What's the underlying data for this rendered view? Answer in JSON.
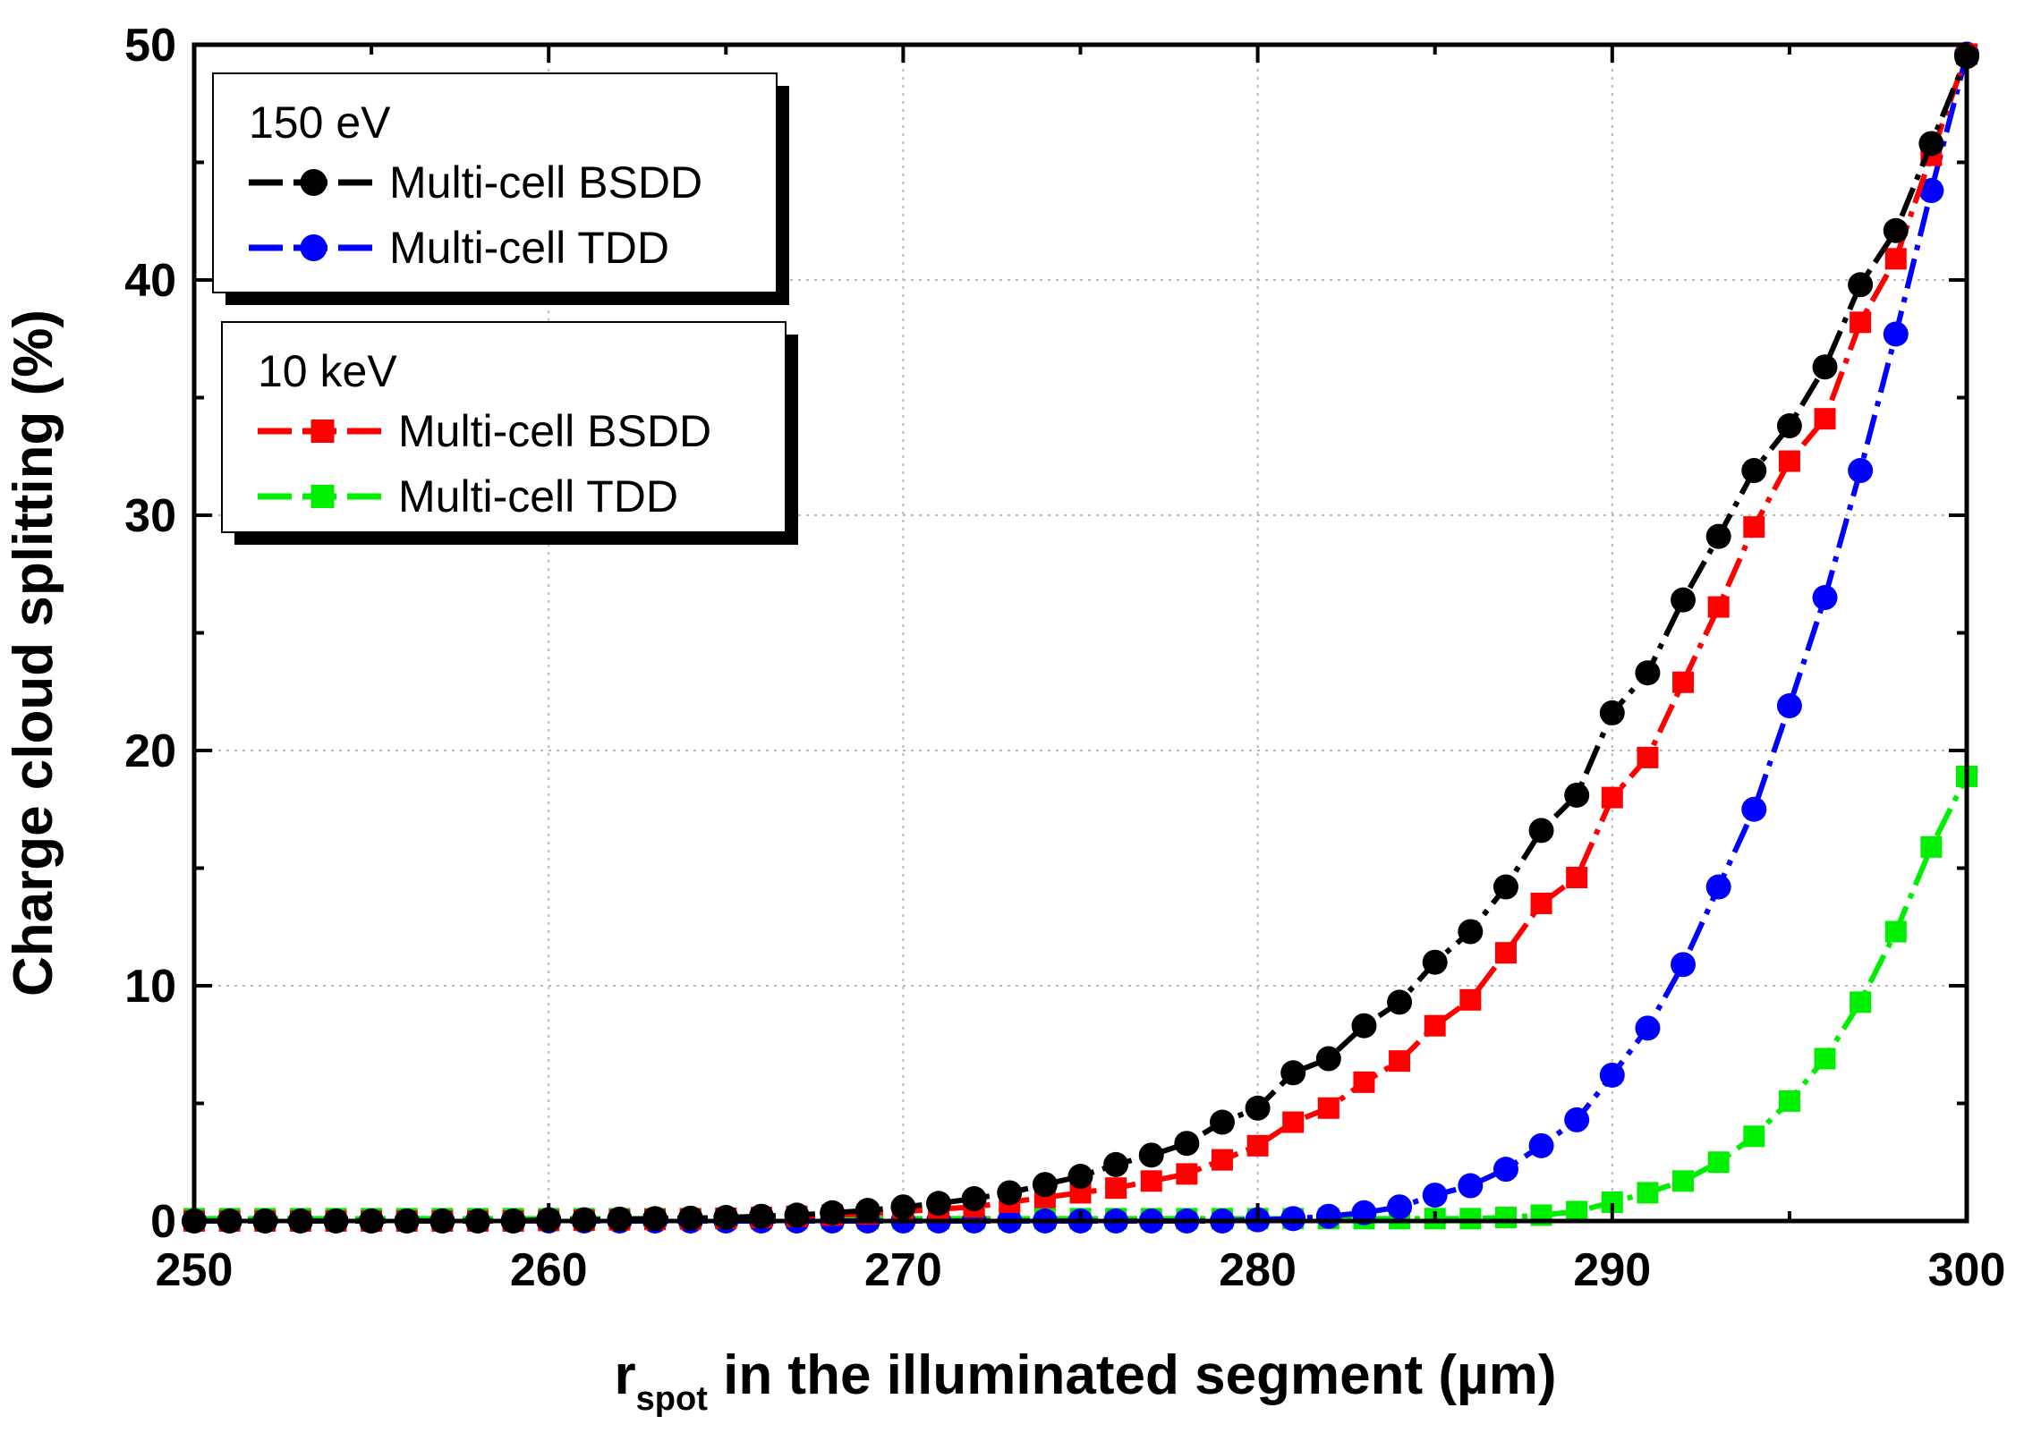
{
  "chart_data": {
    "type": "line",
    "title": "",
    "xlabel_main": "r",
    "xlabel_sub": "spot",
    "xlabel_rest": " in the illuminated segment (µm)",
    "ylabel": "Charge cloud splitting (%)",
    "xlim": [
      250,
      300
    ],
    "ylim": [
      0,
      50
    ],
    "xticks": [
      250,
      260,
      270,
      280,
      290,
      300
    ],
    "yticks": [
      0,
      10,
      20,
      30,
      40,
      50
    ],
    "grid": true,
    "x": [
      250,
      251,
      252,
      253,
      254,
      255,
      256,
      257,
      258,
      259,
      260,
      261,
      262,
      263,
      264,
      265,
      266,
      267,
      268,
      269,
      270,
      271,
      272,
      273,
      274,
      275,
      276,
      277,
      278,
      279,
      280,
      281,
      282,
      283,
      284,
      285,
      286,
      287,
      288,
      289,
      290,
      291,
      292,
      293,
      294,
      295,
      296,
      297,
      298,
      299,
      300
    ],
    "series": [
      {
        "name": "Multi-cell BSDD",
        "group": "150 eV",
        "color": "#000000",
        "marker": "circle",
        "values": [
          0.0,
          0.0,
          0.0,
          0.0,
          0.0,
          0.0,
          0.0,
          0.0,
          0.0,
          0.0,
          0.05,
          0.05,
          0.08,
          0.1,
          0.12,
          0.15,
          0.2,
          0.25,
          0.35,
          0.45,
          0.6,
          0.75,
          0.95,
          1.2,
          1.55,
          1.9,
          2.4,
          2.8,
          3.3,
          4.2,
          4.8,
          6.3,
          6.9,
          8.3,
          9.3,
          11.0,
          12.3,
          14.2,
          16.6,
          18.1,
          21.6,
          23.3,
          26.4,
          29.1,
          31.9,
          33.8,
          36.3,
          39.8,
          42.1,
          45.8,
          49.5
        ]
      },
      {
        "name": "Multi-cell TDD",
        "group": "150 eV",
        "color": "#0000ff",
        "marker": "circle",
        "values": [
          0.0,
          0.0,
          0.0,
          0.0,
          0.0,
          0.0,
          0.0,
          0.0,
          0.0,
          0.0,
          0.0,
          0.0,
          0.0,
          0.0,
          0.0,
          0.0,
          0.0,
          0.0,
          0.0,
          0.0,
          0.0,
          0.0,
          0.0,
          0.0,
          0.0,
          0.0,
          0.0,
          0.0,
          0.0,
          0.0,
          0.05,
          0.1,
          0.2,
          0.35,
          0.6,
          1.1,
          1.5,
          2.2,
          3.2,
          4.3,
          6.2,
          8.2,
          10.9,
          14.2,
          17.5,
          21.9,
          26.5,
          31.9,
          37.7,
          43.8,
          49.6
        ]
      },
      {
        "name": "Multi-cell BSDD",
        "group": "10 keV",
        "color": "#ff0000",
        "marker": "square",
        "values": [
          0.0,
          0.0,
          0.0,
          0.0,
          0.0,
          0.0,
          0.0,
          0.0,
          0.0,
          0.0,
          0.02,
          0.03,
          0.05,
          0.07,
          0.09,
          0.12,
          0.15,
          0.2,
          0.25,
          0.3,
          0.4,
          0.5,
          0.6,
          0.8,
          1.0,
          1.2,
          1.4,
          1.7,
          2.0,
          2.6,
          3.2,
          4.2,
          4.8,
          5.9,
          6.8,
          8.3,
          9.4,
          11.4,
          13.5,
          14.6,
          18.0,
          19.7,
          22.9,
          26.1,
          29.5,
          32.3,
          34.1,
          38.2,
          40.9,
          45.3,
          49.6
        ]
      },
      {
        "name": "Multi-cell TDD",
        "group": "10 keV",
        "color": "#00ee00",
        "marker": "square",
        "values": [
          0.1,
          0.1,
          0.1,
          0.1,
          0.1,
          0.1,
          0.1,
          0.1,
          0.1,
          0.1,
          0.1,
          0.1,
          0.1,
          0.1,
          0.1,
          0.1,
          0.1,
          0.1,
          0.1,
          0.1,
          0.1,
          0.1,
          0.1,
          0.1,
          0.1,
          0.1,
          0.1,
          0.1,
          0.1,
          0.1,
          0.1,
          0.1,
          0.1,
          0.1,
          0.1,
          0.1,
          0.1,
          0.15,
          0.25,
          0.4,
          0.8,
          1.2,
          1.7,
          2.5,
          3.6,
          5.1,
          6.9,
          9.3,
          12.3,
          15.9,
          18.9
        ]
      }
    ],
    "legend": {
      "placement": "top-left",
      "groups": [
        {
          "title": "150 eV",
          "entries": [
            "Multi-cell BSDD",
            "Multi-cell TDD"
          ]
        },
        {
          "title": "10 keV",
          "entries": [
            "Multi-cell BSDD",
            "Multi-cell TDD"
          ]
        }
      ]
    }
  }
}
